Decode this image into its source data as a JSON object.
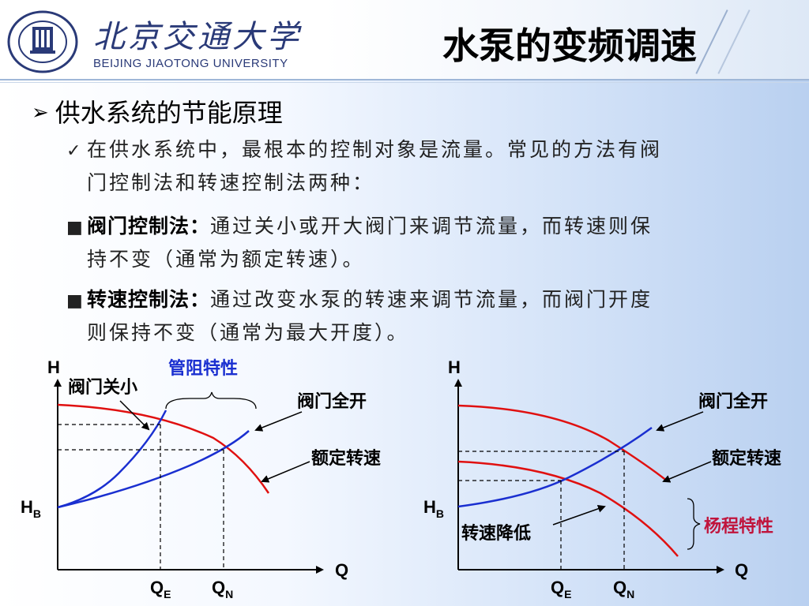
{
  "header": {
    "university_cn": "北京交通大学",
    "university_en": "BEIJING JIAOTONG UNIVERSITY",
    "title": "水泵的变频调速"
  },
  "section": {
    "heading": "供水系统的节能原理",
    "intro_line1": "在供水系统中，最根本的控制对象是流量。常见的方法有阀",
    "intro_line2": "门控制法和转速控制法两种：",
    "method1_label": "阀门控制法：",
    "method1_line1": "通过关小或开大阀门来调节流量，而转速则保",
    "method1_line2": "持不变（通常为额定转速）。",
    "method2_label": "转速控制法：",
    "method2_line1": "通过改变水泵的转速来调节流量，而阀门开度",
    "method2_line2": "则保持不变（通常为最大开度）。"
  },
  "diagram_left": {
    "y_axis": "H",
    "x_axis": "Q",
    "hb": "H",
    "hb_sub": "B",
    "qe": "Q",
    "qe_sub": "E",
    "qn": "Q",
    "qn_sub": "N",
    "pipe_label": "管阻特性",
    "valve_small": "阀门关小",
    "valve_open": "阀门全开",
    "rated_speed": "额定转速"
  },
  "diagram_right": {
    "y_axis": "H",
    "x_axis": "Q",
    "hb": "H",
    "hb_sub": "B",
    "qe": "Q",
    "qe_sub": "E",
    "qn": "Q",
    "qn_sub": "N",
    "valve_open": "阀门全开",
    "rated_speed": "额定转速",
    "speed_down": "转速降低",
    "head_label": "杨程特性"
  },
  "colors": {
    "pipe_curve": "#1a2fd0",
    "pump_curve": "#e01010",
    "pipe_label": "#1a2fd0",
    "head_label": "#c0143c"
  }
}
